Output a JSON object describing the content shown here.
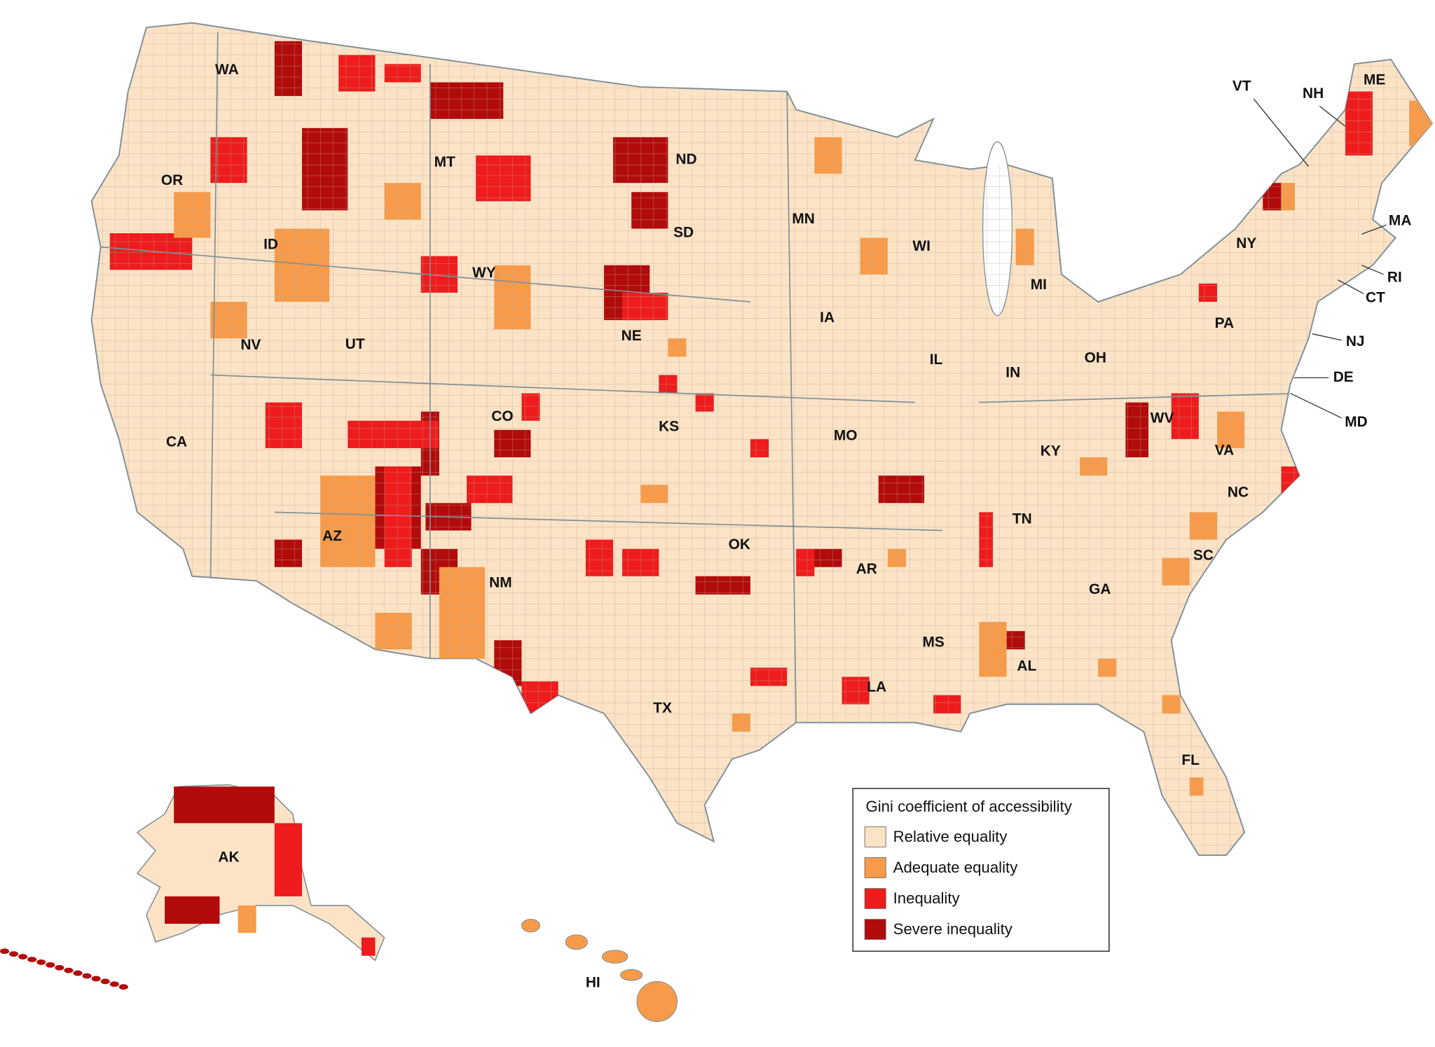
{
  "map": {
    "states": [
      "WA",
      "OR",
      "ID",
      "MT",
      "WY",
      "NV",
      "UT",
      "CA",
      "AZ",
      "CO",
      "NM",
      "ND",
      "SD",
      "NE",
      "KS",
      "OK",
      "TX",
      "MN",
      "IA",
      "MO",
      "AR",
      "LA",
      "WI",
      "IL",
      "MI",
      "IN",
      "OH",
      "KY",
      "TN",
      "MS",
      "AL",
      "GA",
      "FL",
      "SC",
      "NC",
      "VA",
      "WV",
      "PA",
      "NY",
      "VT",
      "NH",
      "ME",
      "MA",
      "RI",
      "CT",
      "NJ",
      "DE",
      "MD",
      "AK",
      "HI"
    ],
    "legend": {
      "title": "Gini coefficient of accessibility",
      "items": [
        {
          "label": "Relative equality",
          "color": "#fce3c6"
        },
        {
          "label": "Adequate equality",
          "color": "#f79b4a"
        },
        {
          "label": "Inequality",
          "color": "#ee1c1c"
        },
        {
          "label": "Severe inequality",
          "color": "#b20b0b"
        }
      ]
    }
  }
}
